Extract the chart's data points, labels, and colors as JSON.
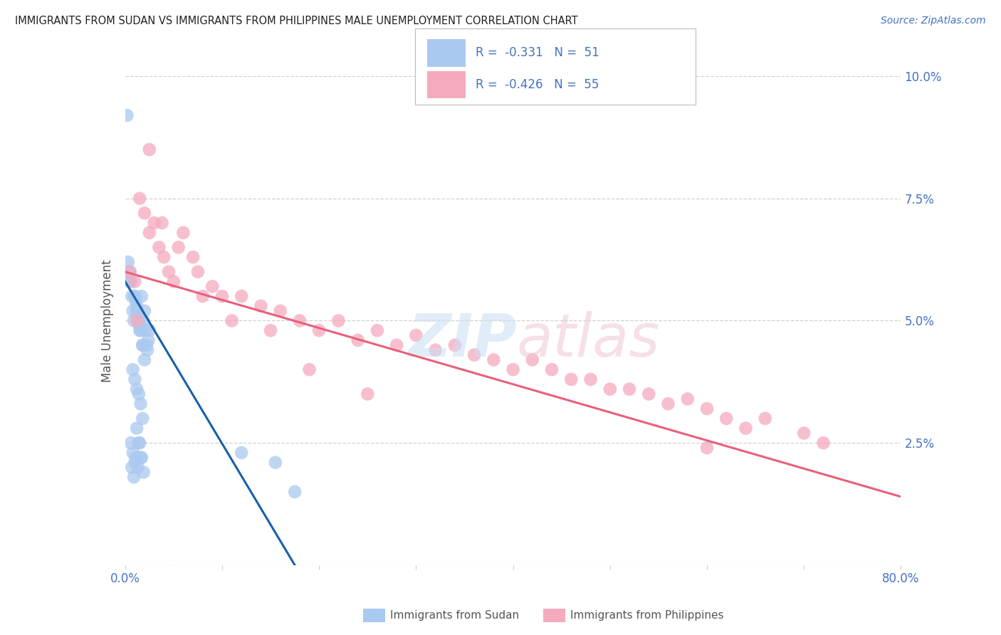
{
  "title": "IMMIGRANTS FROM SUDAN VS IMMIGRANTS FROM PHILIPPINES MALE UNEMPLOYMENT CORRELATION CHART",
  "source": "Source: ZipAtlas.com",
  "ylabel": "Male Unemployment",
  "xlim": [
    0.0,
    0.8
  ],
  "ylim": [
    0.0,
    0.1
  ],
  "yticks": [
    0.0,
    0.025,
    0.05,
    0.075,
    0.1
  ],
  "ytick_labels": [
    "",
    "2.5%",
    "5.0%",
    "7.5%",
    "10.0%"
  ],
  "xtick_positions": [
    0.0,
    0.1,
    0.2,
    0.3,
    0.4,
    0.5,
    0.6,
    0.7,
    0.8
  ],
  "xtick_labels": [
    "0.0%",
    "",
    "",
    "",
    "",
    "",
    "",
    "",
    "80.0%"
  ],
  "sudan_R": -0.331,
  "sudan_N": 51,
  "philippines_R": -0.426,
  "philippines_N": 55,
  "sudan_color": "#aac9f0",
  "philippines_color": "#f5aabe",
  "sudan_line_color": "#1a5fa8",
  "philippines_line_color": "#e8607a",
  "axis_color": "#4472c4",
  "text_color": "#555555",
  "grid_color": "#d0d0d0",
  "background_color": "#ffffff",
  "sudan_x": [
    0.002,
    0.003,
    0.004,
    0.005,
    0.006,
    0.007,
    0.008,
    0.009,
    0.01,
    0.011,
    0.012,
    0.013,
    0.014,
    0.015,
    0.016,
    0.017,
    0.018,
    0.019,
    0.02,
    0.021,
    0.022,
    0.023,
    0.024,
    0.025,
    0.01,
    0.012,
    0.015,
    0.018,
    0.02,
    0.008,
    0.01,
    0.012,
    0.014,
    0.016,
    0.018,
    0.006,
    0.008,
    0.01,
    0.012,
    0.014,
    0.016,
    0.007,
    0.009,
    0.011,
    0.013,
    0.015,
    0.017,
    0.019,
    0.12,
    0.155,
    0.175
  ],
  "sudan_y": [
    0.092,
    0.062,
    0.058,
    0.06,
    0.058,
    0.055,
    0.052,
    0.05,
    0.055,
    0.054,
    0.053,
    0.052,
    0.05,
    0.049,
    0.048,
    0.055,
    0.045,
    0.05,
    0.052,
    0.048,
    0.045,
    0.044,
    0.046,
    0.048,
    0.055,
    0.052,
    0.048,
    0.045,
    0.042,
    0.04,
    0.038,
    0.036,
    0.035,
    0.033,
    0.03,
    0.025,
    0.023,
    0.021,
    0.028,
    0.025,
    0.022,
    0.02,
    0.018,
    0.022,
    0.02,
    0.025,
    0.022,
    0.019,
    0.023,
    0.021,
    0.015
  ],
  "philippines_x": [
    0.005,
    0.01,
    0.015,
    0.02,
    0.025,
    0.03,
    0.035,
    0.04,
    0.045,
    0.05,
    0.06,
    0.07,
    0.08,
    0.09,
    0.1,
    0.12,
    0.14,
    0.16,
    0.18,
    0.2,
    0.22,
    0.24,
    0.26,
    0.28,
    0.3,
    0.32,
    0.34,
    0.36,
    0.38,
    0.4,
    0.42,
    0.44,
    0.46,
    0.48,
    0.5,
    0.52,
    0.54,
    0.56,
    0.58,
    0.6,
    0.62,
    0.64,
    0.66,
    0.7,
    0.72,
    0.012,
    0.025,
    0.038,
    0.055,
    0.075,
    0.11,
    0.15,
    0.19,
    0.25,
    0.6
  ],
  "philippines_y": [
    0.06,
    0.058,
    0.075,
    0.072,
    0.068,
    0.07,
    0.065,
    0.063,
    0.06,
    0.058,
    0.068,
    0.063,
    0.055,
    0.057,
    0.055,
    0.055,
    0.053,
    0.052,
    0.05,
    0.048,
    0.05,
    0.046,
    0.048,
    0.045,
    0.047,
    0.044,
    0.045,
    0.043,
    0.042,
    0.04,
    0.042,
    0.04,
    0.038,
    0.038,
    0.036,
    0.036,
    0.035,
    0.033,
    0.034,
    0.032,
    0.03,
    0.028,
    0.03,
    0.027,
    0.025,
    0.05,
    0.085,
    0.07,
    0.065,
    0.06,
    0.05,
    0.048,
    0.04,
    0.035,
    0.024
  ],
  "sudan_line_x": [
    0.0,
    0.175
  ],
  "sudan_line_y": [
    0.058,
    0.0
  ],
  "philippines_line_x": [
    0.0,
    0.8
  ],
  "philippines_line_y": [
    0.06,
    0.014
  ]
}
